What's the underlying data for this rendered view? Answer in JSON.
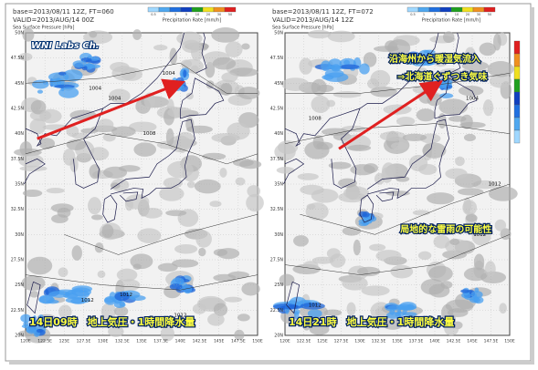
{
  "colorbar_title": "Precipitation Rate [mm/h]",
  "colorbar_labels": [
    "0.5",
    "1",
    "3",
    "5",
    "10",
    "20",
    "30",
    "50"
  ],
  "pressure_title": "Sea Surface Pressure [hPa]",
  "watermark": "WNI Labs Ch.",
  "lat_labels": [
    "50N",
    "47.5N",
    "45N",
    "42.5N",
    "40N",
    "37.5N",
    "35N",
    "32.5N",
    "30N",
    "27.5N",
    "25N",
    "22.5N",
    "20N"
  ],
  "lon_labels": [
    "120E",
    "122.5E",
    "125E",
    "127.5E",
    "130E",
    "132.5E",
    "135E",
    "137.5E",
    "140E",
    "142.5E",
    "145E",
    "147.5E",
    "150E"
  ],
  "panels": [
    {
      "base": "base=2013/08/11 12Z, FT=060",
      "valid": "VALID=2013/AUG/14 00Z",
      "isobars": [
        "1004",
        "1004",
        "1004",
        "1008",
        "1012",
        "1012",
        "1012"
      ],
      "caption": "14日09時　地上気圧・1時間降水量"
    },
    {
      "base": "base=2013/08/11 12Z, FT=072",
      "valid": "VALID=2013/AUG/14 12Z",
      "isobars": [
        "1008",
        "1004",
        "1008",
        "1012",
        "1012",
        "1012"
      ],
      "annotations": [
        "沿海州から暖湿気流入",
        "⇒北海道ぐずつき気味",
        "局地的な雷雨の可能性"
      ],
      "caption": "14日21時　地上気圧・1時間降水量"
    }
  ]
}
